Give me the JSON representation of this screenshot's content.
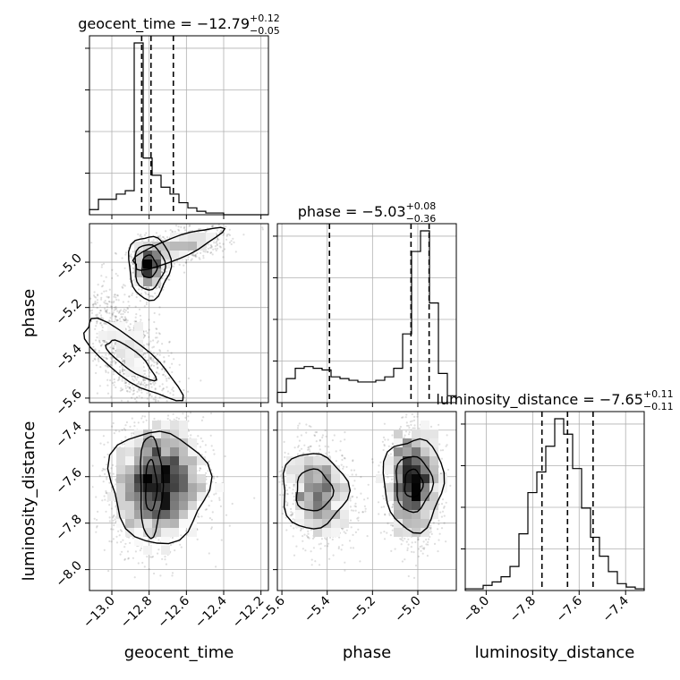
{
  "chart_data": {
    "type": "corner",
    "parameters": [
      {
        "name": "geocent_time",
        "axis_label": "geocent_time",
        "title": {
          "base": "geocent_time = −12.79",
          "plus": "+0.12",
          "minus": "−0.05"
        },
        "range": [
          -13.12,
          -12.16
        ],
        "ticks": [
          -13.0,
          -12.8,
          -12.6,
          -12.4,
          -12.2
        ],
        "tick_labels": [
          "−13.0",
          "−12.8",
          "−12.6",
          "−12.4",
          "−12.2"
        ],
        "quantiles": [
          -12.84,
          -12.79,
          -12.67
        ],
        "histogram": {
          "edges_start": -13.12,
          "bin_width": 0.048,
          "counts": [
            3,
            9,
            9,
            12,
            14,
            100,
            33,
            23,
            16,
            12,
            7,
            4,
            2,
            1,
            1,
            0,
            0,
            0,
            0,
            0
          ]
        }
      },
      {
        "name": "phase",
        "axis_label": "phase",
        "title": {
          "base": "phase = −5.03",
          "plus": "+0.08",
          "minus": "−0.36"
        },
        "range": [
          -5.62,
          -4.83
        ],
        "ticks": [
          -5.6,
          -5.4,
          -5.2,
          -5.0
        ],
        "tick_labels": [
          "−5.6",
          "−5.4",
          "−5.2",
          "−5.0"
        ],
        "quantiles": [
          -5.39,
          -5.03,
          -4.95
        ],
        "histogram": {
          "edges_start": -5.62,
          "bin_width": 0.0395,
          "counts": [
            6,
            14,
            20,
            21,
            20,
            19,
            15,
            14,
            13,
            12,
            12,
            13,
            15,
            20,
            40,
            88,
            100,
            58,
            17,
            4
          ]
        }
      },
      {
        "name": "luminosity_distance",
        "axis_label": "luminosity_distance",
        "title": {
          "base": "luminosity_distance = −7.65",
          "plus": "+0.11",
          "minus": "−0.11"
        },
        "range": [
          -8.09,
          -7.32
        ],
        "ticks": [
          -8.0,
          -7.8,
          -7.6,
          -7.4
        ],
        "tick_labels": [
          "−8.0",
          "−7.8",
          "−7.6",
          "−7.4"
        ],
        "quantiles": [
          -7.76,
          -7.65,
          -7.54
        ],
        "histogram": {
          "edges_start": -8.09,
          "bin_width": 0.0385,
          "counts": [
            1,
            1,
            3,
            5,
            8,
            14,
            33,
            57,
            69,
            84,
            100,
            91,
            71,
            48,
            31,
            20,
            11,
            4,
            2,
            1
          ]
        }
      }
    ],
    "grid": true,
    "colors": {
      "line": "#000000",
      "grid": "#b0b0b0",
      "points": "#000000"
    }
  }
}
